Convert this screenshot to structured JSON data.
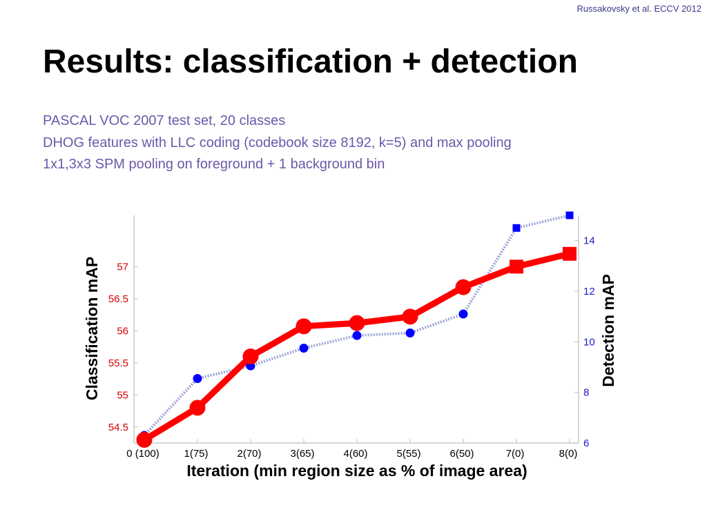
{
  "slide": {
    "citation": "Russakovsky et al. ECCV 2012",
    "title": "Results: classification + detection",
    "lines": [
      "PASCAL VOC 2007 test set, 20 classes",
      "DHOG features with LLC coding (codebook size 8192, k=5) and max pooling",
      "1x1,3x3 SPM pooling on foreground + 1 background bin"
    ]
  },
  "chart_data": {
    "type": "line",
    "xlabel": "Iteration (min region size as % of image area)",
    "categories": [
      "0 (100)",
      "1(75)",
      "2(70)",
      "3(65)",
      "4(60)",
      "5(55)",
      "6(50)",
      "7(0)",
      "8(0)"
    ],
    "ylabel": "Classification mAP",
    "y2label": "Detection mAP",
    "ylim": [
      54.25,
      57.8
    ],
    "yticks": [
      "54.5",
      "55",
      "55.5",
      "56",
      "56.5",
      "57"
    ],
    "y2lim": [
      6,
      15
    ],
    "y2ticks": [
      "6",
      "8",
      "10",
      "12",
      "14"
    ],
    "series": [
      {
        "axis": "left",
        "color": "#ff0000",
        "values": [
          54.3,
          54.8,
          55.6,
          56.07,
          56.12,
          56.22,
          56.68,
          57.0,
          57.2
        ]
      },
      {
        "axis": "right",
        "color": "#0000ff",
        "values": [
          6.3,
          8.55,
          9.05,
          9.75,
          10.25,
          10.35,
          11.1,
          14.5,
          15.0
        ]
      }
    ],
    "colors": {
      "left_axis": "#d40000",
      "right_axis": "#1a1acc",
      "axis_line": "#c8c8c8",
      "blue_line": "#9aa2d8"
    }
  }
}
